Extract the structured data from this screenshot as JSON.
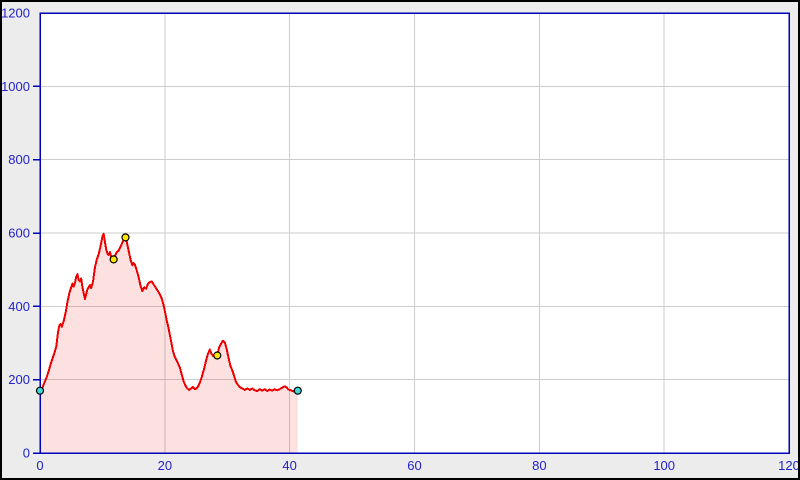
{
  "window": {
    "background_color": "#ececec",
    "frame_color": "#000000"
  },
  "chart_data": {
    "type": "area",
    "title": "",
    "xlabel": "",
    "ylabel": "",
    "xlim": [
      0,
      120
    ],
    "ylim": [
      0,
      1200
    ],
    "grid": true,
    "legend": null,
    "plot": {
      "background_color": "#ffffff",
      "border_color": "#0000bb",
      "tick_color": "#0000bb",
      "grid_color": "#cccccc",
      "tick_label_color": "#2222cc"
    },
    "axes": {
      "x": {
        "ticks": [
          0,
          20,
          40,
          60,
          80,
          100,
          120
        ]
      },
      "y": {
        "ticks": [
          0,
          200,
          400,
          600,
          800,
          1000,
          1200
        ]
      }
    },
    "series": [
      {
        "name": "elevation-profile",
        "line_color": "#ee0000",
        "fill_color": "#ee0000",
        "fill_opacity": 0.12,
        "points": [
          [
            0,
            170
          ],
          [
            0.2,
            168
          ],
          [
            0.5,
            183
          ],
          [
            0.8,
            196
          ],
          [
            1.1,
            208
          ],
          [
            1.4,
            224
          ],
          [
            1.7,
            242
          ],
          [
            2,
            258
          ],
          [
            2.3,
            272
          ],
          [
            2.6,
            290
          ],
          [
            2.9,
            330
          ],
          [
            3.1,
            348
          ],
          [
            3.3,
            352
          ],
          [
            3.5,
            344
          ],
          [
            3.8,
            360
          ],
          [
            4.1,
            382
          ],
          [
            4.4,
            412
          ],
          [
            4.7,
            436
          ],
          [
            5,
            452
          ],
          [
            5.2,
            462
          ],
          [
            5.4,
            454
          ],
          [
            5.6,
            464
          ],
          [
            5.8,
            480
          ],
          [
            6,
            488
          ],
          [
            6.2,
            472
          ],
          [
            6.4,
            468
          ],
          [
            6.6,
            476
          ],
          [
            6.8,
            452
          ],
          [
            7,
            436
          ],
          [
            7.2,
            420
          ],
          [
            7.4,
            434
          ],
          [
            7.6,
            446
          ],
          [
            7.8,
            452
          ],
          [
            8,
            458
          ],
          [
            8.2,
            450
          ],
          [
            8.5,
            468
          ],
          [
            8.8,
            506
          ],
          [
            9.1,
            528
          ],
          [
            9.4,
            542
          ],
          [
            9.7,
            564
          ],
          [
            10,
            590
          ],
          [
            10.2,
            598
          ],
          [
            10.4,
            576
          ],
          [
            10.6,
            556
          ],
          [
            10.8,
            544
          ],
          [
            11,
            540
          ],
          [
            11.2,
            548
          ],
          [
            11.4,
            536
          ],
          [
            11.6,
            532
          ],
          [
            11.8,
            528
          ],
          [
            12,
            538
          ],
          [
            12.3,
            548
          ],
          [
            12.6,
            552
          ],
          [
            12.9,
            562
          ],
          [
            13.2,
            574
          ],
          [
            13.5,
            586
          ],
          [
            13.7,
            590
          ],
          [
            13.9,
            576
          ],
          [
            14.2,
            552
          ],
          [
            14.5,
            528
          ],
          [
            14.8,
            512
          ],
          [
            15,
            518
          ],
          [
            15.2,
            514
          ],
          [
            15.5,
            498
          ],
          [
            15.8,
            480
          ],
          [
            16.1,
            456
          ],
          [
            16.4,
            442
          ],
          [
            16.7,
            452
          ],
          [
            17,
            448
          ],
          [
            17.3,
            462
          ],
          [
            17.6,
            466
          ],
          [
            17.9,
            468
          ],
          [
            18.2,
            460
          ],
          [
            18.5,
            452
          ],
          [
            18.8,
            444
          ],
          [
            19.1,
            436
          ],
          [
            19.4,
            426
          ],
          [
            19.7,
            410
          ],
          [
            20,
            388
          ],
          [
            20.3,
            362
          ],
          [
            20.6,
            340
          ],
          [
            21,
            305
          ],
          [
            21.3,
            278
          ],
          [
            21.6,
            262
          ],
          [
            22,
            248
          ],
          [
            22.4,
            234
          ],
          [
            22.7,
            214
          ],
          [
            23,
            196
          ],
          [
            23.3,
            184
          ],
          [
            23.6,
            176
          ],
          [
            23.9,
            172
          ],
          [
            24.2,
            176
          ],
          [
            24.5,
            180
          ],
          [
            24.8,
            174
          ],
          [
            25.1,
            176
          ],
          [
            25.4,
            184
          ],
          [
            25.7,
            196
          ],
          [
            26,
            212
          ],
          [
            26.3,
            230
          ],
          [
            26.6,
            252
          ],
          [
            26.9,
            270
          ],
          [
            27.2,
            282
          ],
          [
            27.5,
            270
          ],
          [
            27.8,
            264
          ],
          [
            28.1,
            268
          ],
          [
            28.4,
            266
          ],
          [
            28.7,
            288
          ],
          [
            29,
            298
          ],
          [
            29.3,
            306
          ],
          [
            29.6,
            302
          ],
          [
            29.9,
            284
          ],
          [
            30.2,
            260
          ],
          [
            30.5,
            238
          ],
          [
            30.8,
            226
          ],
          [
            31.1,
            210
          ],
          [
            31.4,
            194
          ],
          [
            31.7,
            186
          ],
          [
            32,
            180
          ],
          [
            32.4,
            176
          ],
          [
            32.8,
            172
          ],
          [
            33.2,
            176
          ],
          [
            33.6,
            172
          ],
          [
            34,
            176
          ],
          [
            34.4,
            171
          ],
          [
            34.8,
            169
          ],
          [
            35.2,
            174
          ],
          [
            35.6,
            170
          ],
          [
            36,
            174
          ],
          [
            36.4,
            169
          ],
          [
            36.8,
            173
          ],
          [
            37.2,
            170
          ],
          [
            37.6,
            174
          ],
          [
            38,
            171
          ],
          [
            38.4,
            174
          ],
          [
            38.8,
            178
          ],
          [
            39.2,
            182
          ],
          [
            39.5,
            179
          ],
          [
            39.8,
            173
          ],
          [
            40.2,
            171
          ],
          [
            40.6,
            168
          ],
          [
            41,
            172
          ],
          [
            41.3,
            170
          ]
        ]
      }
    ],
    "markers": [
      {
        "name": "start-marker",
        "shape": "circle",
        "color": "#40d8d8",
        "x": 0,
        "y": 170
      },
      {
        "name": "peak-marker-1",
        "shape": "circle",
        "color": "#ffe600",
        "x": 11.8,
        "y": 528
      },
      {
        "name": "peak-marker-2",
        "shape": "circle",
        "color": "#ffe600",
        "x": 13.7,
        "y": 588
      },
      {
        "name": "peak-marker-3",
        "shape": "circle",
        "color": "#ffe600",
        "x": 28.4,
        "y": 266
      },
      {
        "name": "end-marker",
        "shape": "circle",
        "color": "#40d8d8",
        "x": 41.3,
        "y": 170
      }
    ]
  }
}
